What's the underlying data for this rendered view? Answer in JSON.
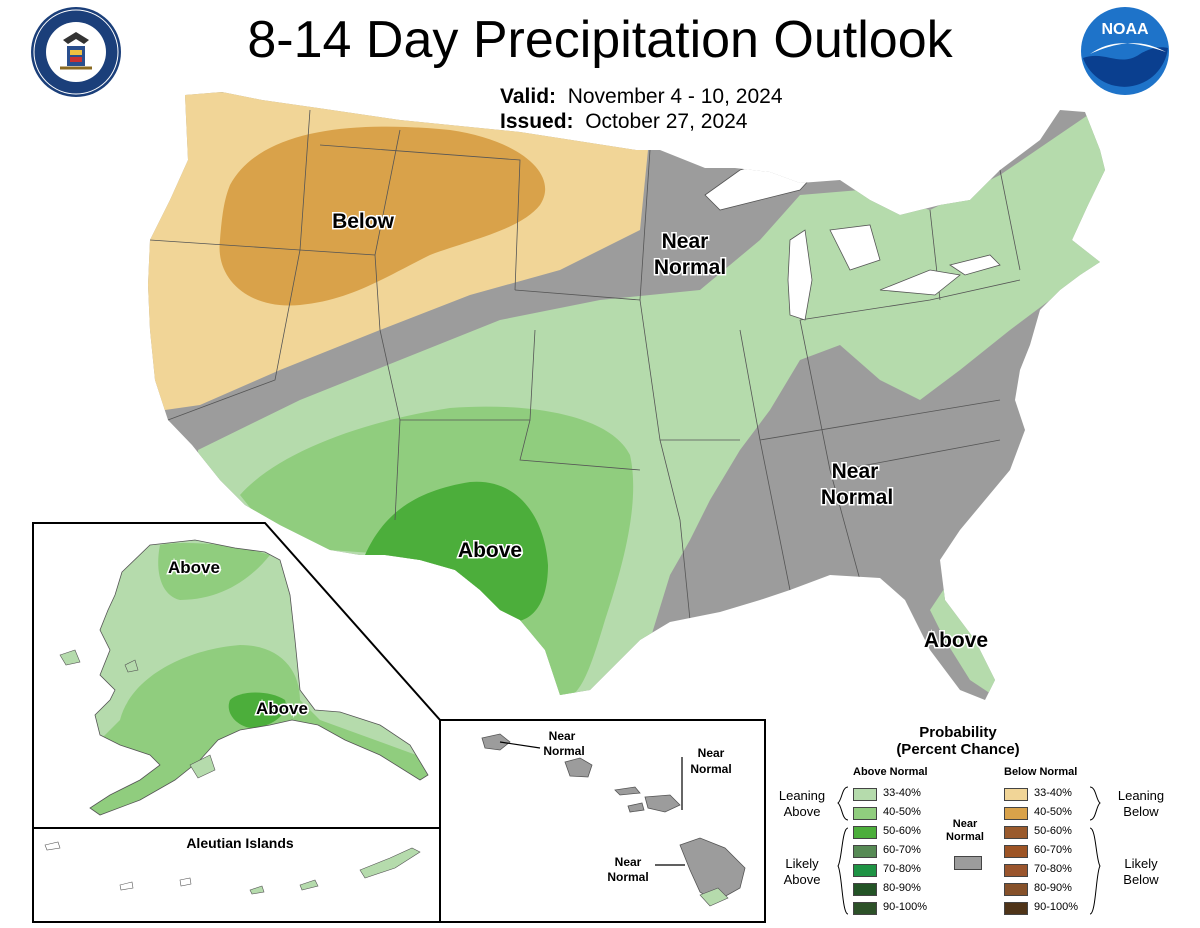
{
  "header": {
    "title": "8-14 Day Precipitation Outlook",
    "valid_label": "Valid:",
    "valid_value": "November 4 - 10, 2024",
    "issued_label": "Issued:",
    "issued_value": "October 27, 2024"
  },
  "logos": {
    "commerce_seal_text": "DEPARTMENT OF COMMERCE · UNITED STATES OF AMERICA",
    "noaa_text": "NOAA"
  },
  "map_labels": {
    "conus_below": "Below",
    "conus_near_north_1": "Near",
    "conus_near_north_2": "Normal",
    "conus_above_texas": "Above",
    "conus_near_south_1": "Near",
    "conus_near_south_2": "Normal",
    "conus_above_florida": "Above",
    "alaska_above_north": "Above",
    "alaska_above_south": "Above",
    "aleutian_title": "Aleutian Islands",
    "hawaii_near_1a": "Near",
    "hawaii_near_1b": "Normal",
    "hawaii_near_2a": "Near",
    "hawaii_near_2b": "Normal",
    "hawaii_near_3a": "Near",
    "hawaii_near_3b": "Normal"
  },
  "legend": {
    "title_line1": "Probability",
    "title_line2": "(Percent Chance)",
    "above_head": "Above Normal",
    "below_head": "Below Normal",
    "near_head_1": "Near",
    "near_head_2": "Normal",
    "leaning_above_1": "Leaning",
    "leaning_above_2": "Above",
    "likely_above_1": "Likely",
    "likely_above_2": "Above",
    "leaning_below_1": "Leaning",
    "leaning_below_2": "Below",
    "likely_below_1": "Likely",
    "likely_below_2": "Below",
    "above": [
      {
        "label": "33-40%",
        "color": "#b5dbac"
      },
      {
        "label": "40-50%",
        "color": "#90cd7e"
      },
      {
        "label": "50-60%",
        "color": "#4cae3b"
      },
      {
        "label": "60-70%",
        "color": "#578a55"
      },
      {
        "label": "70-80%",
        "color": "#1e9344"
      },
      {
        "label": "80-90%",
        "color": "#235426"
      },
      {
        "label": "90-100%",
        "color": "#2d5128"
      }
    ],
    "below": [
      {
        "label": "33-40%",
        "color": "#f1d597"
      },
      {
        "label": "40-50%",
        "color": "#d9a24a"
      },
      {
        "label": "50-60%",
        "color": "#9a5a2c"
      },
      {
        "label": "60-70%",
        "color": "#9d5425"
      },
      {
        "label": "70-80%",
        "color": "#9a552d"
      },
      {
        "label": "80-90%",
        "color": "#86512a"
      },
      {
        "label": "90-100%",
        "color": "#4f3418"
      }
    ],
    "near_color": "#9c9c9c"
  },
  "colors": {
    "near_normal": "#9c9c9c",
    "above_33_40": "#b5dbac",
    "above_40_50": "#90cd7e",
    "above_50_60": "#4cae3b",
    "below_33_40": "#f1d597",
    "below_40_50": "#d9a24a",
    "lakes": "#ffffff",
    "borders": "#555555"
  }
}
